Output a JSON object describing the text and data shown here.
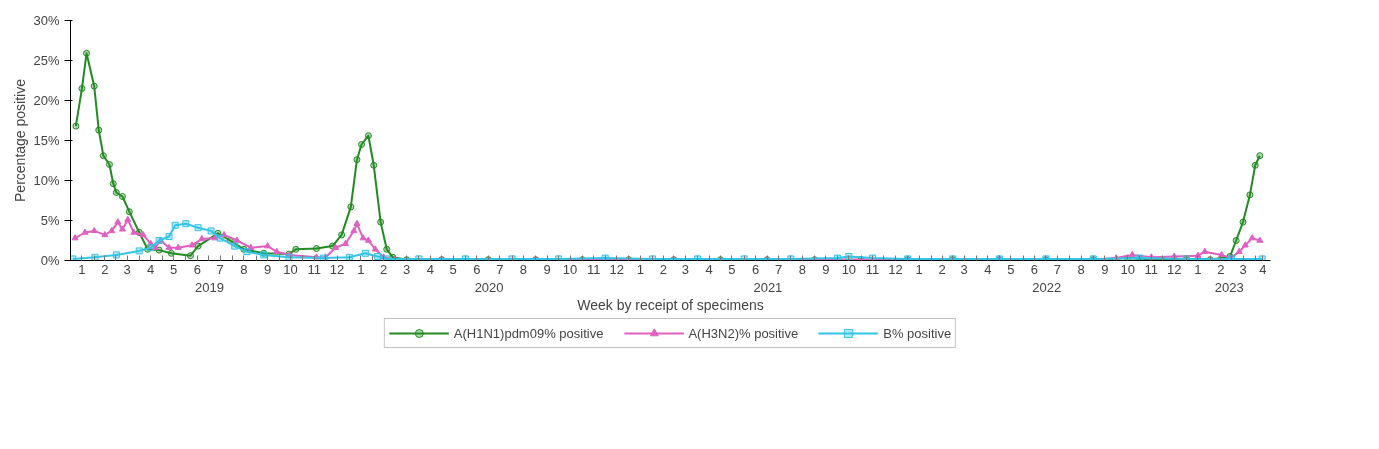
{
  "chart_data": {
    "type": "line",
    "xlabel": "Week by receipt of specimens",
    "ylabel": "Percentage positive",
    "xlim": [
      "2019-01-01",
      "2023-04-21"
    ],
    "ylim": [
      0,
      30
    ],
    "yticks": [
      {
        "value": 0,
        "label": "0%"
      },
      {
        "value": 5,
        "label": "5%"
      },
      {
        "value": 10,
        "label": "10%"
      },
      {
        "value": 15,
        "label": "15%"
      },
      {
        "value": 20,
        "label": "20%"
      },
      {
        "value": 25,
        "label": "25%"
      },
      {
        "value": 30,
        "label": "30%"
      }
    ],
    "xticks": [
      {
        "value": "2019-01-01",
        "label": null
      },
      {
        "value": "2019-01-16",
        "label": "1"
      },
      {
        "value": "2019-02-01",
        "label": null
      },
      {
        "value": "2019-02-15",
        "label": "2"
      },
      {
        "value": "2019-03-01",
        "label": null
      },
      {
        "value": "2019-03-16",
        "label": "3"
      },
      {
        "value": "2019-04-01",
        "label": null
      },
      {
        "value": "2019-04-16",
        "label": "4"
      },
      {
        "value": "2019-05-01",
        "label": null
      },
      {
        "value": "2019-05-16",
        "label": "5"
      },
      {
        "value": "2019-06-01",
        "label": null
      },
      {
        "value": "2019-06-16",
        "label": "6"
      },
      {
        "value": "2019-07-01",
        "label": null
      },
      {
        "value": "2019-07-16",
        "label": "7"
      },
      {
        "value": "2019-08-01",
        "label": null
      },
      {
        "value": "2019-08-16",
        "label": "8"
      },
      {
        "value": "2019-09-01",
        "label": null
      },
      {
        "value": "2019-09-16",
        "label": "9"
      },
      {
        "value": "2019-10-01",
        "label": null
      },
      {
        "value": "2019-10-16",
        "label": "10"
      },
      {
        "value": "2019-11-01",
        "label": null
      },
      {
        "value": "2019-11-16",
        "label": "11"
      },
      {
        "value": "2019-12-01",
        "label": null
      },
      {
        "value": "2019-12-16",
        "label": "12"
      },
      {
        "value": "2020-01-01",
        "label": null
      },
      {
        "value": "2020-01-16",
        "label": "1"
      },
      {
        "value": "2020-02-01",
        "label": null
      },
      {
        "value": "2020-02-15",
        "label": "2"
      },
      {
        "value": "2020-03-01",
        "label": null
      },
      {
        "value": "2020-03-16",
        "label": "3"
      },
      {
        "value": "2020-04-01",
        "label": null
      },
      {
        "value": "2020-04-16",
        "label": "4"
      },
      {
        "value": "2020-05-01",
        "label": null
      },
      {
        "value": "2020-05-16",
        "label": "5"
      },
      {
        "value": "2020-06-01",
        "label": null
      },
      {
        "value": "2020-06-16",
        "label": "6"
      },
      {
        "value": "2020-07-01",
        "label": null
      },
      {
        "value": "2020-07-16",
        "label": "7"
      },
      {
        "value": "2020-08-01",
        "label": null
      },
      {
        "value": "2020-08-16",
        "label": "8"
      },
      {
        "value": "2020-09-01",
        "label": null
      },
      {
        "value": "2020-09-16",
        "label": "9"
      },
      {
        "value": "2020-10-01",
        "label": null
      },
      {
        "value": "2020-10-16",
        "label": "10"
      },
      {
        "value": "2020-11-01",
        "label": null
      },
      {
        "value": "2020-11-16",
        "label": "11"
      },
      {
        "value": "2020-12-01",
        "label": null
      },
      {
        "value": "2020-12-16",
        "label": "12"
      },
      {
        "value": "2021-01-01",
        "label": null
      },
      {
        "value": "2021-01-16",
        "label": "1"
      },
      {
        "value": "2021-02-01",
        "label": null
      },
      {
        "value": "2021-02-15",
        "label": "2"
      },
      {
        "value": "2021-03-01",
        "label": null
      },
      {
        "value": "2021-03-16",
        "label": "3"
      },
      {
        "value": "2021-04-01",
        "label": null
      },
      {
        "value": "2021-04-16",
        "label": "4"
      },
      {
        "value": "2021-05-01",
        "label": null
      },
      {
        "value": "2021-05-16",
        "label": "5"
      },
      {
        "value": "2021-06-01",
        "label": null
      },
      {
        "value": "2021-06-16",
        "label": "6"
      },
      {
        "value": "2021-07-01",
        "label": null
      },
      {
        "value": "2021-07-16",
        "label": "7"
      },
      {
        "value": "2021-08-01",
        "label": null
      },
      {
        "value": "2021-08-16",
        "label": "8"
      },
      {
        "value": "2021-09-01",
        "label": null
      },
      {
        "value": "2021-09-16",
        "label": "9"
      },
      {
        "value": "2021-10-01",
        "label": null
      },
      {
        "value": "2021-10-16",
        "label": "10"
      },
      {
        "value": "2021-11-01",
        "label": null
      },
      {
        "value": "2021-11-16",
        "label": "11"
      },
      {
        "value": "2021-12-01",
        "label": null
      },
      {
        "value": "2021-12-16",
        "label": "12"
      },
      {
        "value": "2022-01-01",
        "label": null
      },
      {
        "value": "2022-01-16",
        "label": "1"
      },
      {
        "value": "2022-02-01",
        "label": null
      },
      {
        "value": "2022-02-15",
        "label": "2"
      },
      {
        "value": "2022-03-01",
        "label": null
      },
      {
        "value": "2022-03-16",
        "label": "3"
      },
      {
        "value": "2022-04-01",
        "label": null
      },
      {
        "value": "2022-04-16",
        "label": "4"
      },
      {
        "value": "2022-05-01",
        "label": null
      },
      {
        "value": "2022-05-16",
        "label": "5"
      },
      {
        "value": "2022-06-01",
        "label": null
      },
      {
        "value": "2022-06-16",
        "label": "6"
      },
      {
        "value": "2022-07-01",
        "label": null
      },
      {
        "value": "2022-07-16",
        "label": "7"
      },
      {
        "value": "2022-08-01",
        "label": null
      },
      {
        "value": "2022-08-16",
        "label": "8"
      },
      {
        "value": "2022-09-01",
        "label": null
      },
      {
        "value": "2022-09-16",
        "label": "9"
      },
      {
        "value": "2022-10-01",
        "label": null
      },
      {
        "value": "2022-10-16",
        "label": "10"
      },
      {
        "value": "2022-11-01",
        "label": null
      },
      {
        "value": "2022-11-16",
        "label": "11"
      },
      {
        "value": "2022-12-01",
        "label": null
      },
      {
        "value": "2022-12-16",
        "label": "12"
      },
      {
        "value": "2023-01-01",
        "label": null
      },
      {
        "value": "2023-01-16",
        "label": "1"
      },
      {
        "value": "2023-02-01",
        "label": null
      },
      {
        "value": "2023-02-15",
        "label": "2"
      },
      {
        "value": "2023-03-01",
        "label": null
      },
      {
        "value": "2023-03-16",
        "label": "3"
      },
      {
        "value": "2023-04-01",
        "label": null
      },
      {
        "value": "2023-04-11",
        "label": "4"
      }
    ],
    "x2lim": [
      "2019-01-01",
      "2023-04-21"
    ],
    "x2ticks": [
      {
        "value": "2019-07-02",
        "label": "2019"
      },
      {
        "value": "2020-07-02",
        "label": "2020"
      },
      {
        "value": "2021-07-02",
        "label": "2021"
      },
      {
        "value": "2022-07-02",
        "label": "2022"
      },
      {
        "value": "2023-02-26",
        "label": "2023"
      }
    ],
    "grid": false,
    "legend": "bottom",
    "line_style": "solid",
    "series": [
      {
        "name": "A(H1N1)pdm09% positive",
        "color": "#228b22",
        "marker": "circle",
        "x": [
          "2019-01-08",
          "2019-01-16",
          "2019-01-22",
          "2019-02-01",
          "2019-02-07",
          "2019-02-13",
          "2019-02-21",
          "2019-02-26",
          "2019-03-02",
          "2019-03-10",
          "2019-03-19",
          "2019-04-01",
          "2019-04-12",
          "2019-04-27",
          "2019-05-13",
          "2019-06-07",
          "2019-06-17",
          "2019-07-13",
          "2019-07-29",
          "2019-08-16",
          "2019-09-11",
          "2019-10-14",
          "2019-10-23",
          "2019-11-19",
          "2019-12-10",
          "2019-12-22",
          "2020-01-03",
          "2020-01-11",
          "2020-01-17",
          "2020-01-26",
          "2020-02-02",
          "2020-02-11",
          "2020-02-19",
          "2020-02-27",
          "2020-03-16",
          "2020-05-01",
          "2020-07-01",
          "2020-09-01",
          "2020-11-01",
          "2021-01-01",
          "2021-03-01",
          "2021-05-01",
          "2021-07-01",
          "2021-09-01",
          "2021-11-01",
          "2022-01-01",
          "2022-03-01",
          "2022-05-01",
          "2022-07-01",
          "2022-09-01",
          "2022-10-16",
          "2022-11-01",
          "2022-12-01",
          "2023-01-01",
          "2023-02-01",
          "2023-02-27",
          "2023-03-07",
          "2023-03-16",
          "2023-03-25",
          "2023-04-01",
          "2023-04-07"
        ],
        "values": [
          16.8,
          21.5,
          25.9,
          21.8,
          16.3,
          13.1,
          12.0,
          9.6,
          8.5,
          8.0,
          6.1,
          3.5,
          1.4,
          1.3,
          0.9,
          0.6,
          1.8,
          3.4,
          2.5,
          1.4,
          0.9,
          0.8,
          1.4,
          1.5,
          1.8,
          3.2,
          6.7,
          12.6,
          14.5,
          15.6,
          11.9,
          4.8,
          1.4,
          0.4,
          0.1,
          0.1,
          0.1,
          0.1,
          0.1,
          0.1,
          0.1,
          0.1,
          0.1,
          0.1,
          0.1,
          0.1,
          0.1,
          0.1,
          0.1,
          0.1,
          0.3,
          0.2,
          0.1,
          0.1,
          0.1,
          0.5,
          2.5,
          4.8,
          8.2,
          11.9,
          13.1
        ]
      },
      {
        "name": "A(H3N2)% positive",
        "color": "#e060c0",
        "marker": "triangle",
        "x": [
          "2019-01-07",
          "2019-01-20",
          "2019-02-01",
          "2019-02-15",
          "2019-02-24",
          "2019-03-04",
          "2019-03-10",
          "2019-03-17",
          "2019-03-25",
          "2019-04-06",
          "2019-04-16",
          "2019-04-22",
          "2019-04-29",
          "2019-05-10",
          "2019-05-22",
          "2019-06-09",
          "2019-06-22",
          "2019-07-09",
          "2019-07-21",
          "2019-08-07",
          "2019-08-25",
          "2019-09-16",
          "2019-09-28",
          "2019-10-15",
          "2019-11-19",
          "2019-12-01",
          "2019-12-14",
          "2019-12-27",
          "2020-01-07",
          "2020-01-11",
          "2020-01-19",
          "2020-01-26",
          "2020-02-04",
          "2020-02-15",
          "2020-03-01",
          "2020-05-01",
          "2020-07-01",
          "2020-09-01",
          "2020-11-01",
          "2021-01-01",
          "2021-03-01",
          "2021-05-01",
          "2021-07-01",
          "2021-09-01",
          "2021-11-01",
          "2022-01-01",
          "2022-03-01",
          "2022-05-01",
          "2022-07-01",
          "2022-09-01",
          "2022-10-01",
          "2022-10-22",
          "2022-11-16",
          "2022-12-16",
          "2023-01-16",
          "2023-01-25",
          "2023-02-16",
          "2023-02-28",
          "2023-03-11",
          "2023-03-19",
          "2023-03-28",
          "2023-04-07"
        ],
        "values": [
          2.8,
          3.5,
          3.7,
          3.2,
          3.7,
          4.8,
          3.9,
          5.1,
          3.5,
          3.2,
          2.1,
          1.6,
          2.5,
          1.6,
          1.6,
          1.9,
          2.7,
          2.8,
          3.2,
          2.5,
          1.6,
          1.8,
          1.1,
          0.7,
          0.4,
          0.4,
          1.6,
          2.1,
          3.7,
          4.6,
          2.8,
          2.5,
          1.4,
          0.4,
          0.1,
          0.1,
          0.1,
          0.1,
          0.1,
          0.1,
          0.1,
          0.1,
          0.1,
          0.1,
          0.1,
          0.1,
          0.1,
          0.2,
          0.1,
          0.1,
          0.3,
          0.7,
          0.4,
          0.5,
          0.6,
          1.1,
          0.7,
          0.3,
          1.1,
          1.9,
          2.8,
          2.5
        ]
      },
      {
        "name": "B% positive",
        "color": "#33c4e6",
        "marker": "square",
        "x": [
          "2019-01-04",
          "2019-02-02",
          "2019-03-02",
          "2019-04-01",
          "2019-04-16",
          "2019-04-27",
          "2019-05-10",
          "2019-05-18",
          "2019-06-01",
          "2019-06-17",
          "2019-07-04",
          "2019-07-16",
          "2019-08-04",
          "2019-08-20",
          "2019-09-11",
          "2019-10-14",
          "2019-11-28",
          "2020-01-01",
          "2020-01-22",
          "2020-02-07",
          "2020-02-19",
          "2020-04-01",
          "2020-06-01",
          "2020-08-01",
          "2020-10-01",
          "2020-12-01",
          "2021-02-01",
          "2021-04-01",
          "2021-06-01",
          "2021-08-01",
          "2021-10-01",
          "2021-10-16",
          "2021-11-16",
          "2022-01-01",
          "2022-03-01",
          "2022-05-01",
          "2022-07-01",
          "2022-09-01",
          "2022-11-01",
          "2023-01-01",
          "2023-03-01",
          "2023-04-10"
        ],
        "values": [
          0.2,
          0.4,
          0.7,
          1.2,
          1.6,
          2.5,
          3.0,
          4.4,
          4.6,
          4.1,
          3.7,
          2.8,
          1.8,
          1.1,
          0.7,
          0.4,
          0.3,
          0.4,
          0.9,
          0.5,
          0.2,
          0.2,
          0.2,
          0.2,
          0.2,
          0.3,
          0.2,
          0.2,
          0.2,
          0.2,
          0.3,
          0.5,
          0.3,
          0.2,
          0.2,
          0.2,
          0.2,
          0.2,
          0.3,
          0.2,
          0.2,
          0.2
        ]
      }
    ]
  }
}
